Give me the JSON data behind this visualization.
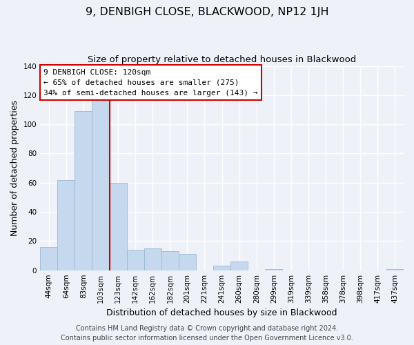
{
  "title": "9, DENBIGH CLOSE, BLACKWOOD, NP12 1JH",
  "subtitle": "Size of property relative to detached houses in Blackwood",
  "xlabel": "Distribution of detached houses by size in Blackwood",
  "ylabel": "Number of detached properties",
  "bar_labels": [
    "44sqm",
    "64sqm",
    "83sqm",
    "103sqm",
    "123sqm",
    "142sqm",
    "162sqm",
    "182sqm",
    "201sqm",
    "221sqm",
    "241sqm",
    "260sqm",
    "280sqm",
    "299sqm",
    "319sqm",
    "339sqm",
    "358sqm",
    "378sqm",
    "398sqm",
    "417sqm",
    "437sqm"
  ],
  "bar_values": [
    16,
    62,
    109,
    117,
    60,
    14,
    15,
    13,
    11,
    0,
    3,
    6,
    0,
    1,
    0,
    0,
    0,
    0,
    0,
    0,
    1
  ],
  "bar_color": "#c5d8ed",
  "bar_edge_color": "#9ab8d4",
  "vline_x_index": 4,
  "vline_color": "#cc0000",
  "ylim": [
    0,
    140
  ],
  "yticks": [
    0,
    20,
    40,
    60,
    80,
    100,
    120,
    140
  ],
  "annotation_title": "9 DENBIGH CLOSE: 120sqm",
  "annotation_line1": "← 65% of detached houses are smaller (275)",
  "annotation_line2": "34% of semi-detached houses are larger (143) →",
  "annotation_box_color": "#ffffff",
  "annotation_box_edge": "#cc0000",
  "footer1": "Contains HM Land Registry data © Crown copyright and database right 2024.",
  "footer2": "Contains public sector information licensed under the Open Government Licence v3.0.",
  "background_color": "#eef2f8",
  "grid_color": "#ffffff",
  "title_fontsize": 11.5,
  "subtitle_fontsize": 9.5,
  "xlabel_fontsize": 9,
  "ylabel_fontsize": 9,
  "tick_fontsize": 7.5,
  "annotation_fontsize": 8,
  "footer_fontsize": 7
}
